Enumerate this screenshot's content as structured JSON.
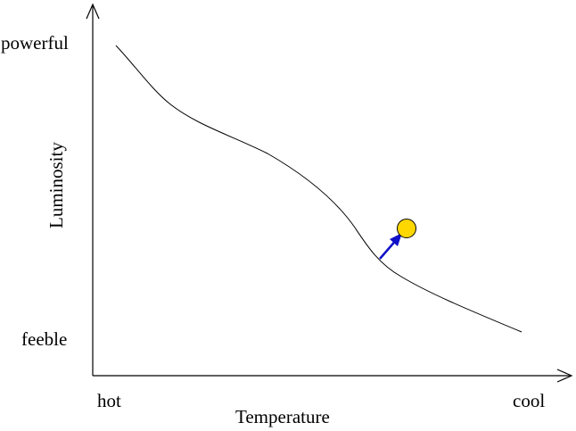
{
  "labels": {
    "y_top": "powerful",
    "y_bottom": "feeble",
    "y_axis": "Luminosity",
    "x_left": "hot",
    "x_right": "cool",
    "x_axis": "Temperature"
  },
  "colors": {
    "axis": "#000000",
    "curve": "#000000",
    "arrow": "#1010c8",
    "star_fill": "#ffd700",
    "star_stroke": "#000000"
  }
}
